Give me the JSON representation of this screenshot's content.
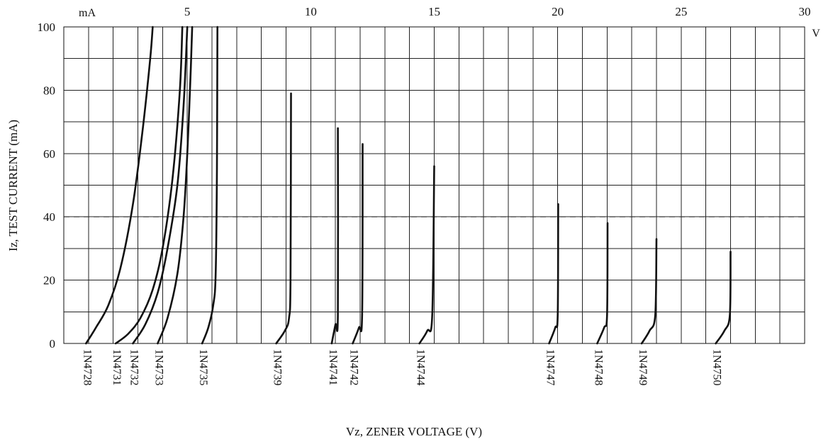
{
  "chart_data": {
    "type": "line",
    "title": "",
    "xlabel": "Vz, ZENER VOLTAGE (V)",
    "ylabel": "Iz, TEST CURRENT (mA)",
    "x_unit": "V",
    "y_unit": "mA",
    "xlim": [
      0,
      30
    ],
    "ylim": [
      0,
      100
    ],
    "x_ticks": [
      5,
      10,
      15,
      20,
      25,
      30
    ],
    "y_ticks": [
      0,
      20,
      40,
      60,
      80,
      100
    ],
    "x_grid_step": 1,
    "y_grid_step": 10,
    "grid": true,
    "reference_line": {
      "y": 40,
      "style": "dashed"
    },
    "series": [
      {
        "name": "1N4728",
        "x": [
          0.9,
          1.3,
          1.8,
          2.3,
          2.8,
          3.2,
          3.5,
          3.6
        ],
        "y": [
          0,
          5,
          12,
          24,
          44,
          68,
          90,
          100
        ]
      },
      {
        "name": "1N4731",
        "x": [
          2.1,
          2.6,
          3.1,
          3.6,
          4.0,
          4.4,
          4.7,
          4.8
        ],
        "y": [
          0,
          3,
          8,
          17,
          30,
          52,
          80,
          100
        ]
      },
      {
        "name": "1N4732",
        "x": [
          2.8,
          3.3,
          3.8,
          4.2,
          4.6,
          4.85,
          5.0
        ],
        "y": [
          0,
          6,
          16,
          30,
          50,
          75,
          100
        ]
      },
      {
        "name": "1N4733",
        "x": [
          3.8,
          4.2,
          4.6,
          4.85,
          5.0,
          5.12,
          5.2
        ],
        "y": [
          0,
          8,
          22,
          40,
          60,
          82,
          100
        ]
      },
      {
        "name": "1N4735",
        "x": [
          5.6,
          5.85,
          6.05,
          6.15,
          6.2,
          6.22
        ],
        "y": [
          0,
          5,
          12,
          22,
          55,
          100
        ]
      },
      {
        "name": "1N4739",
        "x": [
          8.6,
          8.95,
          9.12,
          9.18,
          9.2
        ],
        "y": [
          0,
          4,
          8,
          20,
          79
        ]
      },
      {
        "name": "1N4741",
        "x": [
          10.85,
          11.0,
          11.1,
          11.1
        ],
        "y": [
          0,
          6,
          9,
          68
        ]
      },
      {
        "name": "1N4742",
        "x": [
          11.7,
          11.95,
          12.08,
          12.1
        ],
        "y": [
          0,
          5,
          9,
          63
        ]
      },
      {
        "name": "1N4744",
        "x": [
          14.4,
          14.72,
          14.92,
          15.0
        ],
        "y": [
          0,
          4,
          9,
          56
        ]
      },
      {
        "name": "1N4747",
        "x": [
          19.65,
          19.9,
          20.0,
          20.02
        ],
        "y": [
          0,
          5,
          9,
          44
        ]
      },
      {
        "name": "1N4748",
        "x": [
          21.6,
          21.88,
          22.0,
          22.02
        ],
        "y": [
          0,
          5,
          9,
          38
        ]
      },
      {
        "name": "1N4749",
        "x": [
          23.4,
          23.72,
          23.95,
          24.0
        ],
        "y": [
          0,
          4,
          9,
          33
        ]
      },
      {
        "name": "1N4750",
        "x": [
          26.4,
          26.75,
          26.97,
          27.0
        ],
        "y": [
          0,
          4,
          9,
          29
        ]
      }
    ]
  }
}
